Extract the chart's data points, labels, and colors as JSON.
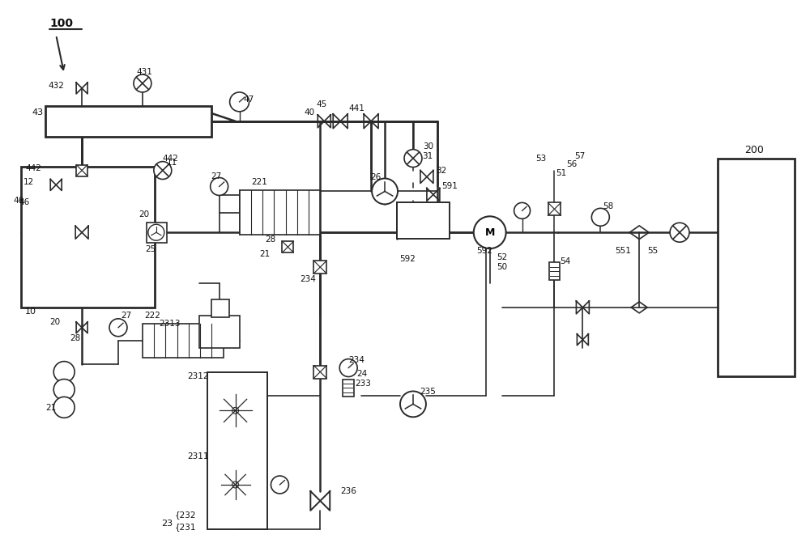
{
  "bg": "#ffffff",
  "lc": "#2a2a2a",
  "fig_w": 10.0,
  "fig_h": 6.92,
  "dpi": 100,
  "xmax": 1000,
  "ymax": 692
}
